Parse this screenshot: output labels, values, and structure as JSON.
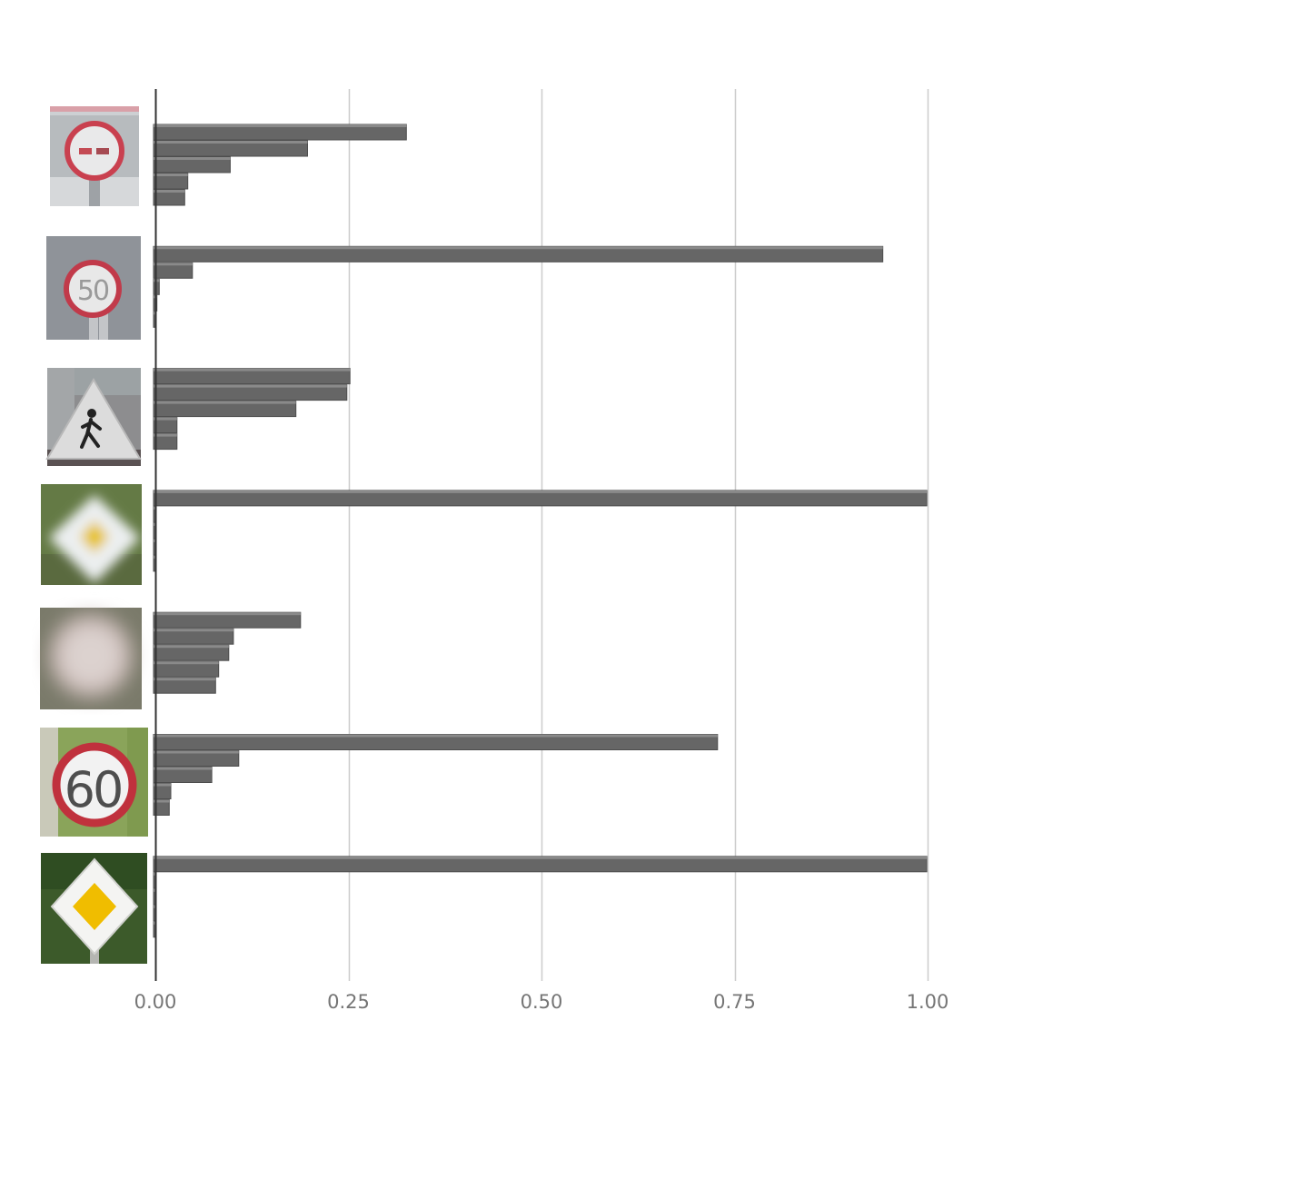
{
  "chart_data": {
    "type": "bar",
    "orientation": "horizontal",
    "title": "",
    "xlabel": "",
    "ylabel": "",
    "xlim": [
      0,
      1
    ],
    "x_ticks": [
      "0.00",
      "0.25",
      "0.50",
      "0.75",
      "1.00"
    ],
    "x_tick_values": [
      0,
      0.25,
      0.5,
      0.75,
      1.0
    ],
    "grid": true,
    "legend": "none",
    "bar_color": "#666666",
    "groups": [
      {
        "category": "no-passing-sign-image",
        "values": [
          0.325,
          0.197,
          0.097,
          0.042,
          0.038
        ]
      },
      {
        "category": "speed-limit-50-sign-image",
        "values": [
          0.942,
          0.048,
          0.005,
          0.002,
          0.001
        ]
      },
      {
        "category": "pedestrian-crossing-sign-image",
        "values": [
          0.252,
          0.248,
          0.182,
          0.028,
          0.028
        ]
      },
      {
        "category": "priority-road-sign-blurry-image",
        "values": [
          0.999,
          0.001,
          0.0005,
          0.0003,
          0.0002
        ]
      },
      {
        "category": "blurry-round-sign-image",
        "values": [
          0.188,
          0.101,
          0.095,
          0.082,
          0.078
        ]
      },
      {
        "category": "speed-limit-60-sign-image",
        "values": [
          0.728,
          0.108,
          0.073,
          0.02,
          0.018
        ]
      },
      {
        "category": "priority-road-sign-image",
        "values": [
          0.999,
          0.001,
          0.0005,
          0.0003,
          0.0002
        ]
      }
    ]
  }
}
